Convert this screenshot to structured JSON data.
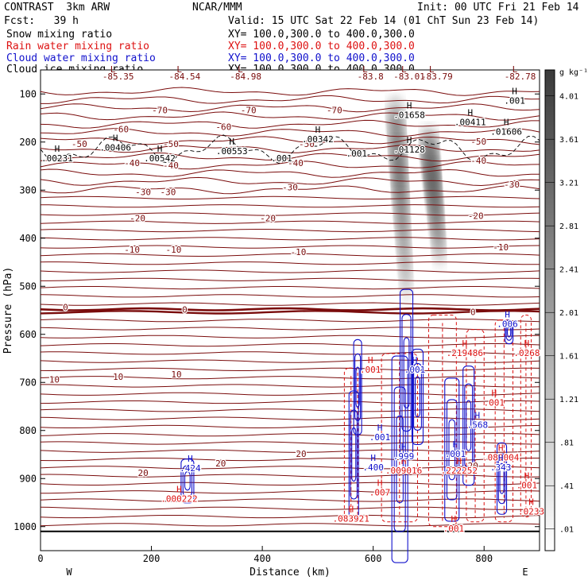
{
  "header": {
    "title_left": "CONTRAST  3km ARW",
    "center": "NCAR/MMM",
    "init": "Init: 00 UTC Fri 21 Feb 14",
    "fcst": "Fcst:   39 h",
    "valid": "Valid: 15 UTC Sat 22 Feb 14 (01 ChT Sun 23 Feb 14)",
    "fields": [
      {
        "label": "Snow mixing ratio",
        "xy": "XY= 100.0,300.0 to 400.0,300.0",
        "color": "#000000"
      },
      {
        "label": "Rain water mixing ratio",
        "xy": "XY= 100.0,300.0 to 400.0,300.0",
        "color": "#dd1111"
      },
      {
        "label": "Cloud water mixing ratio",
        "xy": "XY= 100.0,300.0 to 400.0,300.0",
        "color": "#1111cc"
      },
      {
        "label": "Cloud ice mixing ratio",
        "xy": "XY= 100.0,300.0 to 400.0,300.0",
        "color": "#000000"
      }
    ]
  },
  "colors": {
    "temperature": "#7a0c0c",
    "rain": "#dd1111",
    "cloud_water": "#1111cc",
    "ice": "#000000",
    "snow_shade": "#555555"
  },
  "chart_data": {
    "type": "heatmap",
    "xlabel": "Distance (km)",
    "ylabel": "Pressure (hPa)",
    "xlim": [
      0,
      900
    ],
    "ylim": [
      1050,
      50
    ],
    "x_ticks": [
      0,
      200,
      400,
      600,
      800
    ],
    "y_ticks": [
      100,
      200,
      300,
      400,
      500,
      600,
      700,
      800,
      900,
      1000
    ],
    "end_labels": {
      "left": "W",
      "right": "E"
    },
    "colorbar": {
      "unit": "g kg⁻¹",
      "ticks": [
        ".01",
        ".41",
        ".81",
        "1.21",
        "1.61",
        "2.01",
        "2.41",
        "2.81",
        "3.21",
        "3.61",
        "4.01"
      ],
      "range": [
        0.01,
        4.41
      ]
    },
    "snow_plumes": [
      {
        "name": "plume-a",
        "x_top": 640,
        "p_top": 140,
        "x_bottom": 660,
        "p_bottom": 500,
        "peak": 3.6
      },
      {
        "name": "plume-b",
        "x_top": 700,
        "p_top": 200,
        "x_bottom": 720,
        "p_bottom": 430,
        "peak": 4.2
      }
    ],
    "temperature_labels": [
      {
        "x": 215,
        "p": 140,
        "text": "-70"
      },
      {
        "x": 375,
        "p": 140,
        "text": "-70"
      },
      {
        "x": 530,
        "p": 140,
        "text": "-70"
      },
      {
        "x": 145,
        "p": 180,
        "text": "-60"
      },
      {
        "x": 330,
        "p": 175,
        "text": "-60"
      },
      {
        "x": 70,
        "p": 210,
        "text": "-50"
      },
      {
        "x": 235,
        "p": 210,
        "text": "-50"
      },
      {
        "x": 480,
        "p": 210,
        "text": "-50"
      },
      {
        "x": 790,
        "p": 205,
        "text": "-50"
      },
      {
        "x": 165,
        "p": 250,
        "text": "-40"
      },
      {
        "x": 235,
        "p": 255,
        "text": "-40"
      },
      {
        "x": 460,
        "p": 250,
        "text": "-40"
      },
      {
        "x": 790,
        "p": 245,
        "text": "-40"
      },
      {
        "x": 185,
        "p": 310,
        "text": "-30"
      },
      {
        "x": 230,
        "p": 310,
        "text": "-30"
      },
      {
        "x": 450,
        "p": 300,
        "text": "-30"
      },
      {
        "x": 850,
        "p": 295,
        "text": "-30"
      },
      {
        "x": 175,
        "p": 365,
        "text": "-20"
      },
      {
        "x": 410,
        "p": 365,
        "text": "-20"
      },
      {
        "x": 785,
        "p": 360,
        "text": "-20"
      },
      {
        "x": 165,
        "p": 430,
        "text": "-10"
      },
      {
        "x": 240,
        "p": 430,
        "text": "-10"
      },
      {
        "x": 465,
        "p": 435,
        "text": "-10"
      },
      {
        "x": 830,
        "p": 425,
        "text": "-10"
      },
      {
        "x": 45,
        "p": 550,
        "text": "0"
      },
      {
        "x": 260,
        "p": 555,
        "text": "0"
      },
      {
        "x": 780,
        "p": 560,
        "text": "0"
      },
      {
        "x": 25,
        "p": 700,
        "text": "10"
      },
      {
        "x": 140,
        "p": 695,
        "text": "10"
      },
      {
        "x": 245,
        "p": 690,
        "text": "10"
      },
      {
        "x": 185,
        "p": 895,
        "text": "20"
      },
      {
        "x": 325,
        "p": 875,
        "text": "20"
      },
      {
        "x": 470,
        "p": 855,
        "text": "20"
      },
      {
        "x": 780,
        "p": 880,
        "text": "20"
      }
    ],
    "temperature_top_values": [
      {
        "x": 140,
        "text": "-85.35"
      },
      {
        "x": 260,
        "text": "-84.54"
      },
      {
        "x": 370,
        "text": "-84.98"
      },
      {
        "x": 595,
        "text": "-83.8"
      },
      {
        "x": 665,
        "text": "-83.01"
      },
      {
        "x": 715,
        "text": "-83.79"
      },
      {
        "x": 865,
        "text": "-82.78"
      }
    ],
    "snow_labels": [
      {
        "x": 30,
        "p": 240,
        "text": ".00231"
      },
      {
        "x": 135,
        "p": 218,
        "text": ".00406"
      },
      {
        "x": 215,
        "p": 240,
        "text": ".00542"
      },
      {
        "x": 345,
        "p": 225,
        "text": ".00553"
      },
      {
        "x": 500,
        "p": 200,
        "text": ".00342"
      },
      {
        "x": 665,
        "p": 222,
        "text": ".01128"
      },
      {
        "x": 840,
        "p": 185,
        "text": ".01606"
      },
      {
        "x": 775,
        "p": 165,
        "text": ".00411"
      },
      {
        "x": 665,
        "p": 150,
        "text": ".01658"
      },
      {
        "x": 855,
        "p": 120,
        "text": ".001"
      }
    ],
    "ice_labels": [
      {
        "x": 435,
        "p": 240,
        "text": ".001"
      },
      {
        "x": 570,
        "p": 230,
        "text": ".001"
      }
    ],
    "rain_labels": [
      {
        "x": 250,
        "p": 948,
        "text": ".000222"
      },
      {
        "x": 560,
        "p": 990,
        "text": ".083921"
      },
      {
        "x": 595,
        "p": 680,
        "text": ".001"
      },
      {
        "x": 765,
        "p": 645,
        "text": ".219486"
      },
      {
        "x": 877,
        "p": 645,
        "text": ".0268"
      },
      {
        "x": 818,
        "p": 748,
        "text": ".001"
      },
      {
        "x": 755,
        "p": 890,
        "text": ".222252"
      },
      {
        "x": 830,
        "p": 862,
        "text": ".089004"
      },
      {
        "x": 877,
        "p": 920,
        "text": ".001"
      },
      {
        "x": 885,
        "p": 975,
        "text": ".0233"
      },
      {
        "x": 655,
        "p": 890,
        "text": ".009016"
      },
      {
        "x": 612,
        "p": 935,
        "text": ".007"
      },
      {
        "x": 745,
        "p": 1010,
        "text": ".001"
      }
    ],
    "cloud_labels": [
      {
        "x": 270,
        "p": 885,
        "text": ".424"
      },
      {
        "x": 600,
        "p": 883,
        "text": ".400"
      },
      {
        "x": 655,
        "p": 860,
        "text": ".999"
      },
      {
        "x": 748,
        "p": 855,
        "text": ".001"
      },
      {
        "x": 788,
        "p": 795,
        "text": ".568"
      },
      {
        "x": 830,
        "p": 883,
        "text": ".343"
      },
      {
        "x": 675,
        "p": 680,
        "text": ".001"
      },
      {
        "x": 612,
        "p": 820,
        "text": ".001"
      },
      {
        "x": 842,
        "p": 585,
        "text": ".006"
      }
    ],
    "rain_columns": [
      {
        "x1": 548,
        "x2": 572,
        "p_top": 670,
        "p_bottom": 985
      },
      {
        "x1": 615,
        "x2": 680,
        "p_top": 640,
        "p_bottom": 990
      },
      {
        "x1": 700,
        "x2": 750,
        "p_top": 560,
        "p_bottom": 1000
      },
      {
        "x1": 768,
        "x2": 800,
        "p_top": 590,
        "p_bottom": 990
      },
      {
        "x1": 820,
        "x2": 852,
        "p_top": 570,
        "p_bottom": 990
      },
      {
        "x1": 866,
        "x2": 885,
        "p_top": 560,
        "p_bottom": 980
      }
    ],
    "cloud_clusters": [
      {
        "x": 265,
        "p": 905,
        "w": 16,
        "h": 55
      },
      {
        "x": 565,
        "p": 850,
        "w": 12,
        "h": 160
      },
      {
        "x": 572,
        "p": 710,
        "w": 10,
        "h": 120
      },
      {
        "x": 648,
        "p": 860,
        "w": 20,
        "h": 260
      },
      {
        "x": 660,
        "p": 680,
        "w": 16,
        "h": 210
      },
      {
        "x": 680,
        "p": 730,
        "w": 14,
        "h": 120
      },
      {
        "x": 742,
        "p": 840,
        "w": 18,
        "h": 180
      },
      {
        "x": 772,
        "p": 790,
        "w": 14,
        "h": 150
      },
      {
        "x": 832,
        "p": 900,
        "w": 12,
        "h": 90
      },
      {
        "x": 845,
        "p": 595,
        "w": 10,
        "h": 30
      }
    ]
  }
}
